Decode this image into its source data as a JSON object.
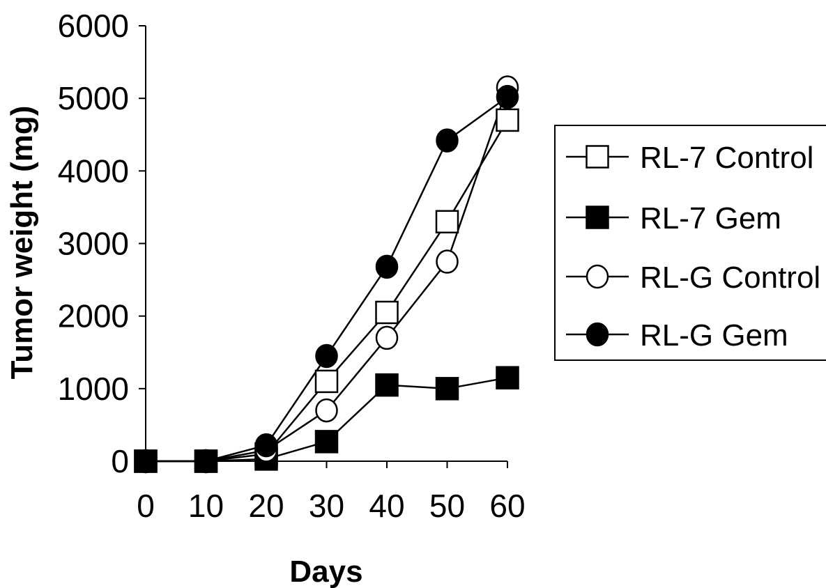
{
  "chart_data": {
    "type": "line",
    "title": "",
    "xlabel": "Days",
    "ylabel": "Tumor weight (mg)",
    "x": [
      0,
      10,
      20,
      30,
      40,
      50,
      60
    ],
    "xticks": [
      "0",
      "10",
      "20",
      "30",
      "40",
      "50",
      "60"
    ],
    "yticks": [
      "0",
      "1000",
      "2000",
      "3000",
      "4000",
      "5000",
      "6000"
    ],
    "xlim": [
      0,
      60
    ],
    "ylim": [
      0,
      6000
    ],
    "grid": false,
    "legend_position": "right",
    "series": [
      {
        "name": "RL-7 Control",
        "marker": "square-open",
        "color": "#000000",
        "values": [
          0,
          0,
          100,
          1100,
          2050,
          3300,
          4700
        ]
      },
      {
        "name": "RL-7 Gem",
        "marker": "square-filled",
        "color": "#000000",
        "values": [
          0,
          0,
          30,
          270,
          1050,
          1000,
          1150
        ]
      },
      {
        "name": "RL-G Control",
        "marker": "circle-open",
        "color": "#000000",
        "values": [
          0,
          0,
          150,
          700,
          1700,
          2750,
          5150
        ]
      },
      {
        "name": "RL-G Gem",
        "marker": "circle-filled",
        "color": "#000000",
        "values": [
          0,
          0,
          220,
          1450,
          2680,
          4420,
          5020
        ]
      }
    ]
  }
}
